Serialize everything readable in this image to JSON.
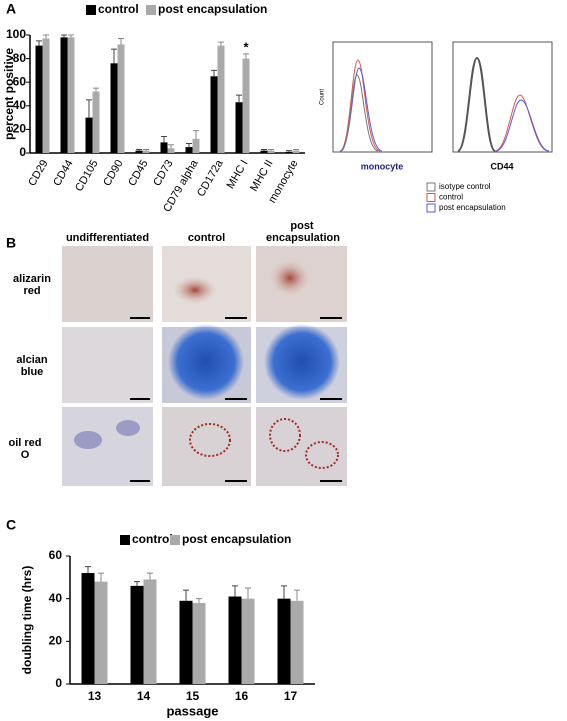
{
  "panel_labels": [
    "A",
    "B",
    "C"
  ],
  "chart_data": [
    {
      "type": "bar",
      "y_label": "percent positive",
      "categories": [
        "CD29",
        "CD44",
        "CD105",
        "CD90",
        "CD45",
        "CD73",
        "CD79 alpha",
        "CD172a",
        "MHC I",
        "MHC II",
        "monocyte"
      ],
      "series": [
        {
          "name": "control",
          "color": "#000000",
          "values": [
            91,
            98,
            30,
            76,
            2,
            9,
            5,
            65,
            43,
            2,
            1
          ],
          "errors": [
            4,
            2,
            15,
            12,
            1,
            5,
            3,
            5,
            6,
            1,
            1
          ]
        },
        {
          "name": "post encapsulation",
          "color": "#aaaaaa",
          "values": [
            97,
            98,
            52,
            92,
            2,
            4,
            12,
            91,
            80,
            2,
            2
          ],
          "errors": [
            3,
            2,
            3,
            5,
            1,
            3,
            7,
            3,
            4,
            1,
            1
          ]
        }
      ],
      "ylim": [
        0,
        100
      ],
      "yticks": [
        0,
        20,
        40,
        60,
        80,
        100
      ],
      "annotations": [
        {
          "text": "*",
          "category": "MHC I"
        }
      ]
    },
    {
      "type": "bar",
      "y_label": "doubling time (hrs)",
      "x_label": "passage",
      "categories": [
        "13",
        "14",
        "15",
        "16",
        "17"
      ],
      "series": [
        {
          "name": "control",
          "color": "#000000",
          "values": [
            52,
            46,
            39,
            41,
            40
          ],
          "errors": [
            3,
            2,
            5,
            5,
            6
          ]
        },
        {
          "name": "post encapsulation",
          "color": "#aaaaaa",
          "values": [
            48,
            49,
            38,
            40,
            39
          ],
          "errors": [
            4,
            3,
            2,
            5,
            5
          ]
        }
      ],
      "ylim": [
        0,
        60
      ],
      "yticks": [
        0,
        20,
        40,
        60
      ]
    }
  ],
  "flow": {
    "y_label": "Count",
    "panels": [
      "monocyte",
      "CD44"
    ],
    "legend": [
      {
        "name": "isotype control",
        "color": "#777777"
      },
      {
        "name": "control",
        "color": "#d9534f"
      },
      {
        "name": "post encapsulation",
        "color": "#5a5ad6"
      }
    ]
  },
  "micrographs": {
    "columns": [
      "undifferentiated",
      "control",
      "post encapsulation"
    ],
    "rows": [
      "alizarin red",
      "alcian blue",
      "oil red O"
    ]
  }
}
